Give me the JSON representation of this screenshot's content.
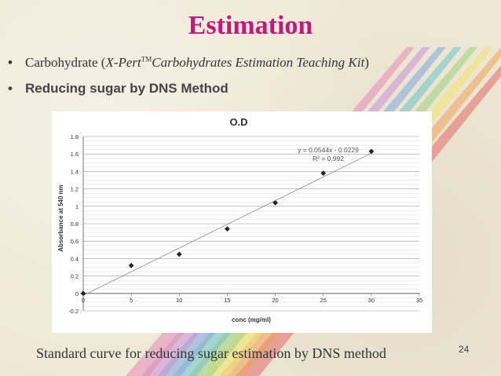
{
  "slide": {
    "title": "Estimation",
    "bullet1": {
      "prefix": "Carbohydrate (",
      "kit_name": "X-Pert",
      "tm": "TM",
      "kit_rest": "Carbohydrates Estimation Teaching Kit",
      "suffix": ")"
    },
    "bullet2": "Reducing sugar by DNS Method",
    "caption": "Standard curve for reducing sugar estimation by DNS method",
    "page_number": "24",
    "bullet_glyph": "•"
  },
  "chart_data": {
    "type": "scatter",
    "title": "O.D",
    "xlabel": "conc (mg/ml)",
    "ylabel": "Absorbance at 540 nm",
    "xlim": [
      0,
      35
    ],
    "ylim": [
      -0.2,
      1.8
    ],
    "xticks": [
      "0",
      "5",
      "10",
      "15",
      "20",
      "25",
      "30",
      "35"
    ],
    "yticks": [
      "-0.2",
      "0",
      "0.2",
      "0.4",
      "0.6",
      "0.8",
      "1",
      "1.2",
      "1.4",
      "1.6",
      "1.8"
    ],
    "grid": true,
    "x": [
      0,
      5,
      10,
      15,
      20,
      25,
      30
    ],
    "y": [
      0.0,
      0.32,
      0.45,
      0.74,
      1.04,
      1.38,
      1.63
    ],
    "trendline": {
      "slope": 0.0544,
      "intercept": -0.0229
    },
    "equation": "y = 0.0544x - 0.0229",
    "r_squared": "R² = 0.992",
    "marker_color": "#222222",
    "trend_color": "#888888"
  },
  "colors": {
    "title": "#c0197a",
    "stripes": [
      "#e46a6a",
      "#f0a35a",
      "#f2e46a",
      "#9ed27a",
      "#6fc3c9",
      "#7fa8e0",
      "#c88fd8",
      "#e48ab8"
    ]
  }
}
